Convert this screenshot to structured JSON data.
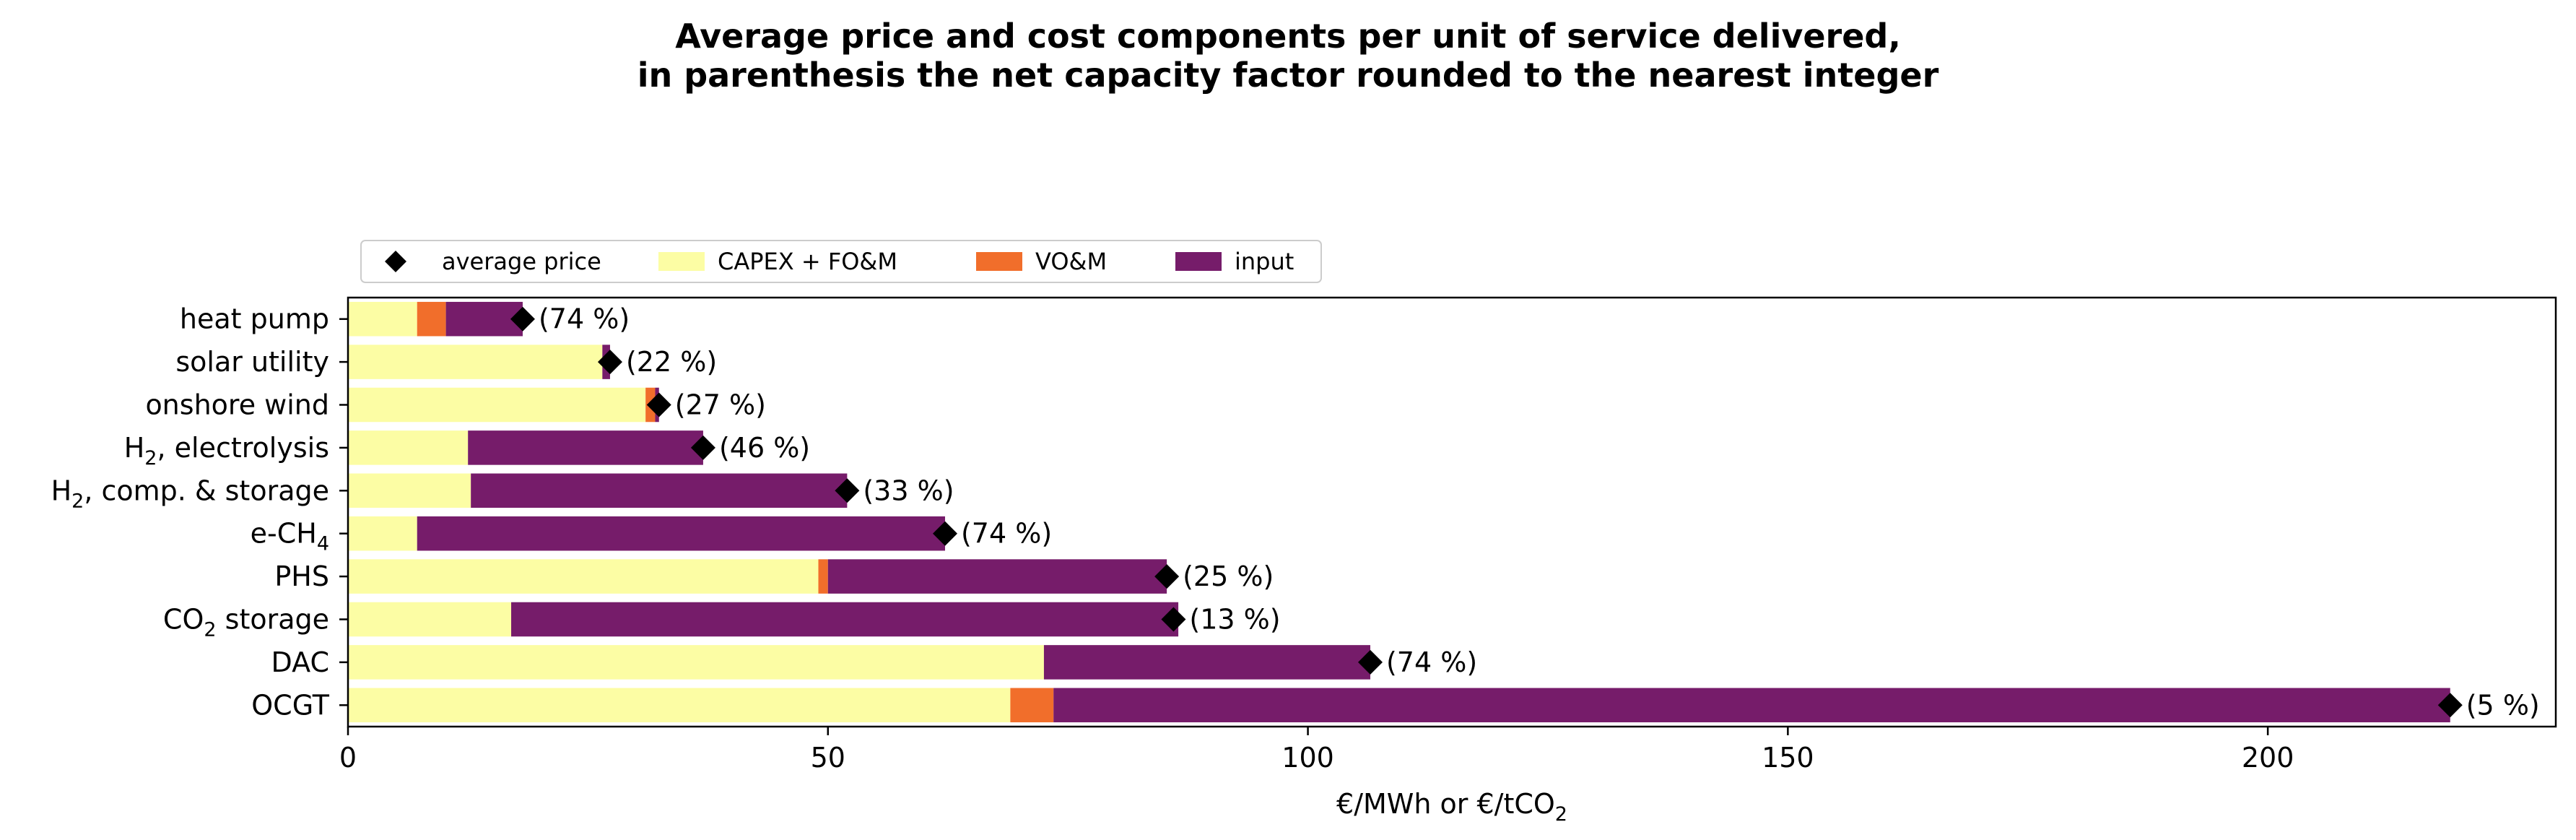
{
  "chart_data": {
    "type": "bar",
    "orientation": "horizontal",
    "stacked": true,
    "title_line1": "Average price and cost components per unit of service delivered,",
    "title_line2": "in parenthesis the net capacity factor rounded to the nearest integer",
    "xlabel": "€/MWh or €/tCO",
    "xlabel_sub": "2",
    "xlim": [
      0,
      230
    ],
    "x_ticks": [
      0,
      50,
      100,
      150,
      200
    ],
    "grid": false,
    "legend_position": "top-left, above plot",
    "categories": [
      {
        "main": "heat pump",
        "sub": "",
        "tail": ""
      },
      {
        "main": "solar utility",
        "sub": "",
        "tail": ""
      },
      {
        "main": "onshore wind",
        "sub": "",
        "tail": ""
      },
      {
        "main": "H",
        "sub": "2",
        "tail": ", electrolysis"
      },
      {
        "main": "H",
        "sub": "2",
        "tail": ", comp. & storage"
      },
      {
        "main": "e-CH",
        "sub": "4",
        "tail": ""
      },
      {
        "main": "PHS",
        "sub": "",
        "tail": ""
      },
      {
        "main": "CO",
        "sub": "2",
        "tail": " storage"
      },
      {
        "main": "DAC",
        "sub": "",
        "tail": ""
      },
      {
        "main": "OCGT",
        "sub": "",
        "tail": ""
      }
    ],
    "series": [
      {
        "name": "CAPEX + FO&M",
        "color": "#fcfda4",
        "values": [
          7.2,
          26.5,
          31.0,
          12.5,
          12.8,
          7.2,
          49.0,
          17.0,
          72.5,
          69.0
        ]
      },
      {
        "name": "VO&M",
        "color": "#f16e2b",
        "values": [
          3.0,
          0.0,
          1.0,
          0.0,
          0.0,
          0.0,
          1.0,
          0.0,
          0.0,
          4.5
        ]
      },
      {
        "name": "input",
        "color": "#761c6a",
        "values": [
          8.0,
          0.8,
          0.4,
          24.5,
          39.2,
          55.0,
          35.3,
          69.5,
          34.0,
          145.5
        ]
      }
    ],
    "average_price": {
      "name": "average price",
      "color": "#000000",
      "values": [
        18.2,
        27.3,
        32.4,
        37.0,
        52.0,
        62.2,
        85.3,
        86.0,
        106.5,
        219.0
      ]
    },
    "annotations": [
      "(74 %)",
      "(22 %)",
      "(27 %)",
      "(46 %)",
      "(33 %)",
      "(74 %)",
      "(25 %)",
      "(13 %)",
      "(74 %)",
      "(5 %)"
    ],
    "legend": [
      {
        "label": "average price",
        "kind": "marker",
        "color": "#000000"
      },
      {
        "label": "CAPEX + FO&M",
        "kind": "patch",
        "color": "#fcfda4"
      },
      {
        "label": "VO&M",
        "kind": "patch",
        "color": "#f16e2b"
      },
      {
        "label": "input",
        "kind": "patch",
        "color": "#761c6a"
      }
    ]
  }
}
